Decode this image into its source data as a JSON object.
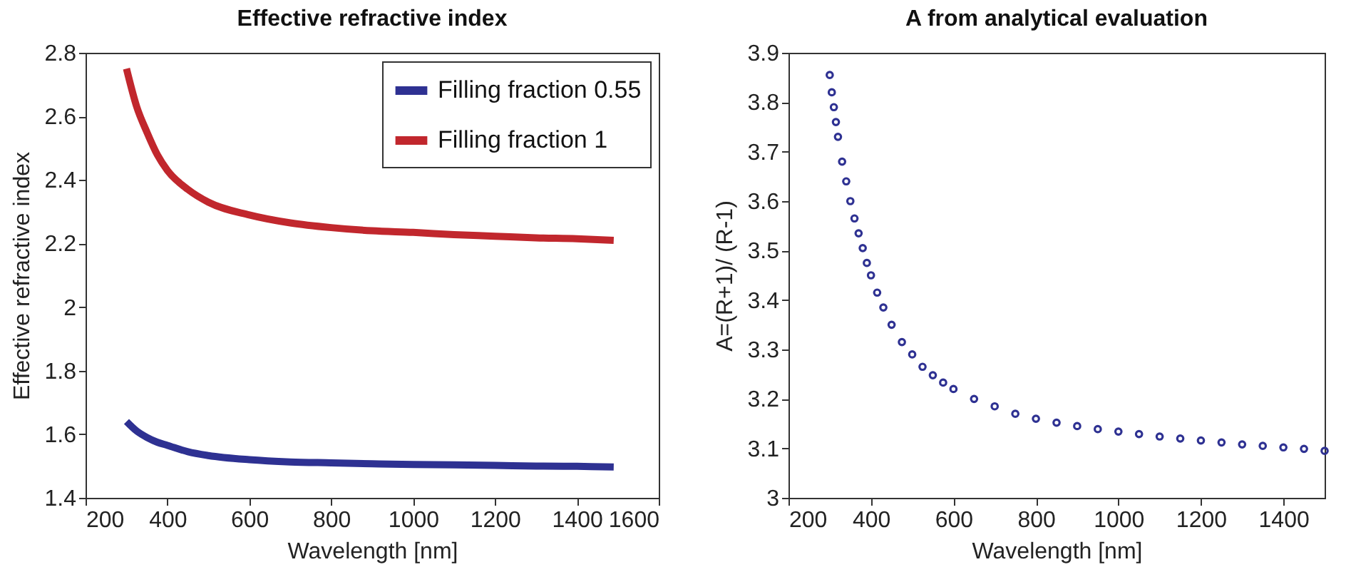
{
  "chart_data": [
    {
      "type": "line",
      "title": "Effective refractive index",
      "xlabel": "Wavelength [nm]",
      "ylabel": "Effective refractive index",
      "xlim": [
        200,
        1600
      ],
      "xticks": [
        200,
        400,
        600,
        800,
        1000,
        1200,
        1400,
        1600
      ],
      "ylim": [
        1.4,
        2.8
      ],
      "yticks": [
        1.4,
        1.6,
        1.8,
        2,
        2.2,
        2.4,
        2.6,
        2.8
      ],
      "legend": "top right",
      "grid": false,
      "line_style": "solid",
      "x": [
        300,
        325,
        350,
        375,
        400,
        450,
        500,
        600,
        700,
        800,
        900,
        1000,
        1100,
        1200,
        1300,
        1400,
        1490
      ],
      "series": [
        {
          "name": "Filling fraction 0.55",
          "color": "#2e3192",
          "values": [
            1.64,
            1.61,
            1.59,
            1.575,
            1.565,
            1.545,
            1.533,
            1.52,
            1.513,
            1.51,
            1.507,
            1.505,
            1.504,
            1.502,
            1.5,
            1.499,
            1.497
          ]
        },
        {
          "name": "Filling fraction 1",
          "color": "#c1272d",
          "values": [
            2.75,
            2.63,
            2.55,
            2.48,
            2.43,
            2.37,
            2.33,
            2.29,
            2.265,
            2.25,
            2.24,
            2.235,
            2.228,
            2.223,
            2.218,
            2.215,
            2.21
          ]
        }
      ]
    },
    {
      "type": "scatter",
      "title": "A from analytical evaluation",
      "xlabel": "Wavelength [nm]",
      "ylabel": "A=(R+1)/ (R-1)",
      "xlim": [
        200,
        1500
      ],
      "xticks": [
        200,
        400,
        600,
        800,
        1000,
        1200,
        1400
      ],
      "ylim": [
        3,
        3.9
      ],
      "yticks": [
        3,
        3.1,
        3.2,
        3.3,
        3.4,
        3.5,
        3.6,
        3.7,
        3.8,
        3.9
      ],
      "grid": false,
      "marker": "circle",
      "x": [
        300,
        305,
        310,
        315,
        320,
        330,
        340,
        350,
        360,
        370,
        380,
        390,
        400,
        415,
        430,
        450,
        475,
        500,
        525,
        550,
        575,
        600,
        650,
        700,
        750,
        800,
        850,
        900,
        950,
        1000,
        1050,
        1100,
        1150,
        1200,
        1250,
        1300,
        1350,
        1400,
        1450,
        1500
      ],
      "series": [
        {
          "color": "#2e3192",
          "values": [
            3.855,
            3.82,
            3.79,
            3.76,
            3.73,
            3.68,
            3.64,
            3.6,
            3.565,
            3.535,
            3.505,
            3.475,
            3.45,
            3.415,
            3.385,
            3.35,
            3.315,
            3.29,
            3.265,
            3.248,
            3.233,
            3.22,
            3.2,
            3.185,
            3.17,
            3.16,
            3.152,
            3.145,
            3.139,
            3.134,
            3.129,
            3.124,
            3.12,
            3.116,
            3.112,
            3.108,
            3.105,
            3.102,
            3.099,
            3.095
          ]
        }
      ]
    }
  ]
}
